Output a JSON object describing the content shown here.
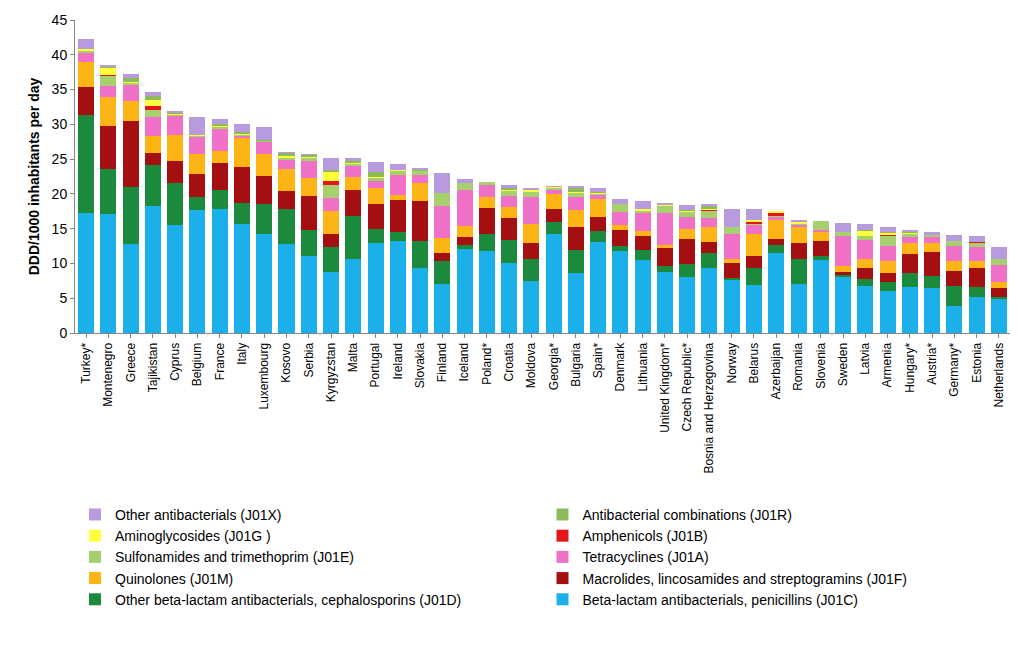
{
  "chart_data": {
    "type": "bar",
    "stacked": true,
    "grid": false,
    "legend": "bottom",
    "ylabel": "DDD/1000 inhabitants per day",
    "ylim": [
      0,
      45
    ],
    "yticks": [
      0,
      5,
      10,
      15,
      20,
      25,
      30,
      35,
      40,
      45
    ],
    "categories": [
      "Turkey*",
      "Montenegro",
      "Greece",
      "Tajikistan",
      "Cyprus",
      "Belgium",
      "France",
      "Italy",
      "Luxembourg",
      "Kosovo",
      "Serbia",
      "Kyrgyzstan",
      "Malta",
      "Portugal",
      "Ireland",
      "Slovakia",
      "Finland",
      "Iceland",
      "Poland*",
      "Croatia",
      "Moldova",
      "Georgia*",
      "Bulgaria",
      "Spain*",
      "Denmark",
      "Lithuania",
      "United Kingdom*",
      "Czech Republic*",
      "Bosnia and Herzegovina",
      "Norway",
      "Belarus",
      "Azerbaijan",
      "Romania",
      "Slovenia",
      "Sweden",
      "Latvia",
      "Armenia",
      "Hungary*",
      "Austria*",
      "Germany*",
      "Estonia",
      "Netherlands"
    ],
    "series": [
      {
        "name": "Beta-lactam antibacterials, penicillins (J01C)",
        "color": "#1CB0EA",
        "values": [
          17.3,
          17.1,
          12.8,
          18.2,
          15.5,
          17.7,
          17.8,
          15.7,
          14.2,
          12.8,
          11.0,
          8.8,
          10.7,
          12.9,
          13.2,
          9.3,
          7.1,
          12.1,
          11.8,
          10.1,
          7.5,
          14.2,
          8.6,
          13.1,
          11.8,
          10.5,
          8.8,
          8.1,
          9.3,
          7.6,
          6.9,
          11.5,
          7.0,
          10.5,
          8.0,
          6.8,
          6.0,
          6.6,
          6.4,
          3.9,
          5.2,
          4.9
        ]
      },
      {
        "name": "Other beta-lactam antibacterials, cephalosporins (J01D)",
        "color": "#1B8A3C",
        "values": [
          14.1,
          6.5,
          8.2,
          6.0,
          6.1,
          1.9,
          2.7,
          3.0,
          4.4,
          5.0,
          3.8,
          3.6,
          6.1,
          2.0,
          1.3,
          3.9,
          3.3,
          0.6,
          2.4,
          3.2,
          3.1,
          1.8,
          3.3,
          1.6,
          0.7,
          1.4,
          0.8,
          1.8,
          2.2,
          0.3,
          2.4,
          1.1,
          3.6,
          0.6,
          0.4,
          1.0,
          1.4,
          2.0,
          1.8,
          2.9,
          1.4,
          0.3
        ]
      },
      {
        "name": "Macrolides, lincosamides and streptogramins (J01F)",
        "color": "#A40F12",
        "values": [
          3.9,
          6.1,
          9.5,
          1.7,
          3.1,
          3.2,
          4.0,
          5.2,
          4.0,
          2.6,
          4.9,
          1.9,
          3.7,
          3.6,
          4.6,
          5.8,
          1.1,
          1.1,
          3.8,
          3.2,
          2.3,
          1.8,
          3.4,
          2.0,
          2.3,
          2.0,
          2.6,
          3.6,
          1.6,
          2.1,
          1.7,
          0.9,
          2.3,
          2.1,
          0.4,
          1.6,
          1.2,
          2.7,
          3.4,
          2.1,
          2.7,
          1.3
        ]
      },
      {
        "name": "Quinolones (J01M)",
        "color": "#FDB515",
        "values": [
          3.6,
          4.2,
          2.9,
          2.4,
          3.8,
          3.0,
          1.7,
          4.1,
          3.1,
          3.2,
          2.6,
          3.2,
          2.0,
          2.4,
          0.8,
          2.5,
          2.1,
          1.6,
          1.6,
          1.6,
          2.7,
          2.2,
          2.4,
          2.5,
          0.7,
          0.8,
          0.5,
          1.4,
          2.2,
          0.6,
          3.2,
          2.8,
          2.4,
          1.4,
          0.9,
          1.3,
          1.8,
          1.7,
          1.4,
          1.5,
          1.1,
          0.8
        ]
      },
      {
        "name": "Tetracyclines (J01A)",
        "color": "#F070C8",
        "values": [
          1.3,
          1.6,
          2.3,
          2.7,
          2.7,
          2.4,
          3.1,
          0.3,
          1.7,
          1.3,
          2.5,
          1.9,
          1.5,
          0.9,
          2.8,
          1.2,
          4.6,
          5.1,
          1.7,
          1.6,
          4.0,
          0.5,
          1.9,
          0.6,
          1.9,
          2.6,
          4.6,
          1.8,
          1.3,
          3.6,
          1.4,
          0.4,
          0.3,
          0.2,
          4.2,
          2.6,
          2.1,
          0.8,
          0.8,
          2.1,
          2.0,
          2.5
        ]
      },
      {
        "name": "Sulfonamides and trimethoprim (J01E)",
        "color": "#A6D06E",
        "values": [
          0.3,
          1.5,
          0.3,
          1.0,
          0.2,
          0.2,
          0.4,
          0.3,
          0.3,
          0.4,
          0.5,
          1.9,
          0.4,
          0.6,
          0.6,
          0.6,
          2.0,
          1.1,
          0.4,
          0.8,
          0.7,
          0.4,
          0.6,
          0.3,
          1.1,
          0.3,
          1.1,
          0.8,
          1.0,
          1.1,
          0.1,
          0.1,
          0.2,
          1.3,
          0.6,
          0.6,
          1.4,
          0.5,
          0.3,
          0.7,
          0.6,
          0.9
        ]
      },
      {
        "name": "Amphenicols (J01B)",
        "color": "#E3161C",
        "values": [
          0,
          0.1,
          0,
          0.6,
          0,
          0,
          0,
          0,
          0,
          0,
          0,
          0.5,
          0,
          0,
          0,
          0,
          0,
          0,
          0,
          0,
          0.1,
          0,
          0,
          0,
          0,
          0,
          0,
          0,
          0.1,
          0,
          0.3,
          0.5,
          0,
          0,
          0,
          0,
          0.3,
          0,
          0,
          0,
          0.1,
          0
        ]
      },
      {
        "name": "Aminoglycosides (J01G )",
        "color": "#FFFF3C",
        "values": [
          0.3,
          1.0,
          0.1,
          0.9,
          0.1,
          0.1,
          0.1,
          0.1,
          0,
          0.1,
          0.1,
          1.3,
          0.1,
          0.1,
          0.1,
          0.1,
          0,
          0,
          0,
          0.1,
          0.2,
          0.1,
          0.1,
          0.1,
          0,
          0.2,
          0.1,
          0.1,
          0.1,
          0,
          0.2,
          0.1,
          0.1,
          0,
          0,
          0.8,
          0.2,
          0.1,
          0,
          0,
          0,
          0
        ]
      },
      {
        "name": "Antibacterial combinations (J01R)",
        "color": "#8DBA5A",
        "values": [
          0,
          0.2,
          0.5,
          0.6,
          0.2,
          0,
          0.2,
          0.2,
          0.1,
          0.5,
          0.2,
          0.3,
          0.3,
          0.6,
          0,
          0.1,
          0,
          0,
          0,
          0.2,
          0.1,
          0,
          0.6,
          0.1,
          0,
          0,
          0,
          0.1,
          0.4,
          0,
          0,
          0,
          0,
          0,
          0,
          0.1,
          0.1,
          0.2,
          0,
          0,
          0,
          0
        ]
      },
      {
        "name": "Other antibacterials (J01X)",
        "color": "#B79BDE",
        "values": [
          1.4,
          0.2,
          0.6,
          0.6,
          0.2,
          2.6,
          0.7,
          1.1,
          1.8,
          0.1,
          0.1,
          1.7,
          0.3,
          1.5,
          0.9,
          0.2,
          2.8,
          0.5,
          0,
          0.5,
          0.2,
          0.1,
          0.1,
          0.5,
          0.7,
          1.2,
          0.2,
          0.7,
          0.3,
          2.6,
          1.7,
          0,
          0.3,
          0,
          1.3,
          0.9,
          0.7,
          0.2,
          0.4,
          0.9,
          0.8,
          1.6
        ]
      }
    ]
  }
}
